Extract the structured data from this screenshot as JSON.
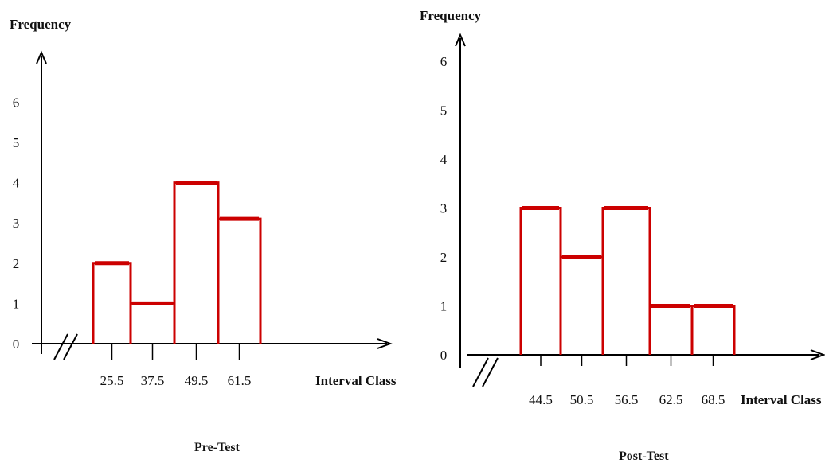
{
  "chart_data": [
    {
      "type": "bar",
      "title": "Pre-Test",
      "ylabel": "Frequency",
      "xlabel": "Interval Class",
      "categories": [
        "25.5",
        "37.5",
        "49.5",
        "61.5"
      ],
      "values": [
        2,
        1,
        4,
        3.1
      ],
      "ylim": [
        0,
        6
      ],
      "yticks": [
        "0",
        "1",
        "2",
        "3",
        "4",
        "5",
        "6"
      ],
      "bar_color": "#cc0000"
    },
    {
      "type": "bar",
      "title": "Post-Test",
      "ylabel": "Frequency",
      "xlabel": "Interval Class",
      "categories": [
        "44.5",
        "50.5",
        "56.5",
        "62.5",
        "68.5"
      ],
      "values": [
        3,
        2,
        3,
        1,
        1
      ],
      "ylim": [
        0,
        6
      ],
      "yticks": [
        "0",
        "1",
        "2",
        "3",
        "4",
        "5",
        "6"
      ],
      "bar_color": "#cc0000"
    }
  ]
}
